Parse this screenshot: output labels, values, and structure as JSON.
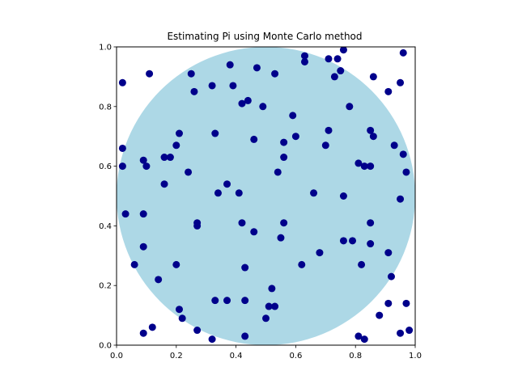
{
  "chart_data": {
    "type": "scatter",
    "title": "Estimating Pi using Monte Carlo method",
    "xlabel": "",
    "ylabel": "",
    "xlim": [
      0.0,
      1.0
    ],
    "ylim": [
      0.0,
      1.0
    ],
    "xticks": [
      "0.0",
      "0.2",
      "0.4",
      "0.6",
      "0.8",
      "1.0"
    ],
    "yticks": [
      "0.0",
      "0.2",
      "0.4",
      "0.6",
      "0.8",
      "1.0"
    ],
    "grid": false,
    "legend": "none",
    "circle": {
      "center": [
        0.5,
        0.5
      ],
      "radius": 0.5,
      "color": "#add8e6"
    },
    "point_color": "#00008b",
    "series": [
      {
        "points": [
          [
            0.02,
            0.88
          ],
          [
            0.11,
            0.91
          ],
          [
            0.25,
            0.91
          ],
          [
            0.38,
            0.94
          ],
          [
            0.47,
            0.93
          ],
          [
            0.53,
            0.91
          ],
          [
            0.63,
            0.97
          ],
          [
            0.63,
            0.95
          ],
          [
            0.71,
            0.96
          ],
          [
            0.74,
            0.96
          ],
          [
            0.76,
            0.99
          ],
          [
            0.73,
            0.9
          ],
          [
            0.75,
            0.92
          ],
          [
            0.86,
            0.9
          ],
          [
            0.95,
            0.88
          ],
          [
            0.96,
            0.98
          ],
          [
            0.91,
            0.85
          ],
          [
            0.26,
            0.85
          ],
          [
            0.32,
            0.87
          ],
          [
            0.39,
            0.87
          ],
          [
            0.42,
            0.81
          ],
          [
            0.44,
            0.82
          ],
          [
            0.49,
            0.8
          ],
          [
            0.59,
            0.77
          ],
          [
            0.78,
            0.8
          ],
          [
            0.21,
            0.71
          ],
          [
            0.33,
            0.71
          ],
          [
            0.46,
            0.69
          ],
          [
            0.56,
            0.68
          ],
          [
            0.6,
            0.7
          ],
          [
            0.71,
            0.72
          ],
          [
            0.7,
            0.67
          ],
          [
            0.85,
            0.72
          ],
          [
            0.86,
            0.7
          ],
          [
            0.93,
            0.67
          ],
          [
            0.96,
            0.64
          ],
          [
            0.02,
            0.66
          ],
          [
            0.02,
            0.6
          ],
          [
            0.09,
            0.62
          ],
          [
            0.1,
            0.6
          ],
          [
            0.16,
            0.63
          ],
          [
            0.18,
            0.63
          ],
          [
            0.2,
            0.67
          ],
          [
            0.24,
            0.58
          ],
          [
            0.16,
            0.54
          ],
          [
            0.37,
            0.54
          ],
          [
            0.34,
            0.51
          ],
          [
            0.41,
            0.51
          ],
          [
            0.54,
            0.58
          ],
          [
            0.56,
            0.63
          ],
          [
            0.66,
            0.51
          ],
          [
            0.76,
            0.5
          ],
          [
            0.81,
            0.61
          ],
          [
            0.83,
            0.6
          ],
          [
            0.85,
            0.6
          ],
          [
            0.97,
            0.58
          ],
          [
            0.95,
            0.49
          ],
          [
            0.03,
            0.44
          ],
          [
            0.09,
            0.44
          ],
          [
            0.27,
            0.41
          ],
          [
            0.27,
            0.4
          ],
          [
            0.42,
            0.41
          ],
          [
            0.46,
            0.38
          ],
          [
            0.56,
            0.41
          ],
          [
            0.55,
            0.36
          ],
          [
            0.85,
            0.41
          ],
          [
            0.79,
            0.35
          ],
          [
            0.76,
            0.35
          ],
          [
            0.85,
            0.34
          ],
          [
            0.68,
            0.31
          ],
          [
            0.06,
            0.27
          ],
          [
            0.09,
            0.33
          ],
          [
            0.2,
            0.27
          ],
          [
            0.14,
            0.22
          ],
          [
            0.43,
            0.26
          ],
          [
            0.62,
            0.27
          ],
          [
            0.82,
            0.27
          ],
          [
            0.91,
            0.31
          ],
          [
            0.92,
            0.23
          ],
          [
            0.21,
            0.12
          ],
          [
            0.22,
            0.09
          ],
          [
            0.33,
            0.15
          ],
          [
            0.37,
            0.15
          ],
          [
            0.43,
            0.15
          ],
          [
            0.52,
            0.19
          ],
          [
            0.51,
            0.13
          ],
          [
            0.53,
            0.13
          ],
          [
            0.5,
            0.09
          ],
          [
            0.27,
            0.05
          ],
          [
            0.32,
            0.02
          ],
          [
            0.43,
            0.03
          ],
          [
            0.09,
            0.04
          ],
          [
            0.12,
            0.06
          ],
          [
            0.81,
            0.03
          ],
          [
            0.83,
            0.02
          ],
          [
            0.88,
            0.1
          ],
          [
            0.91,
            0.14
          ],
          [
            0.97,
            0.14
          ],
          [
            0.95,
            0.04
          ],
          [
            0.98,
            0.05
          ]
        ]
      }
    ]
  }
}
